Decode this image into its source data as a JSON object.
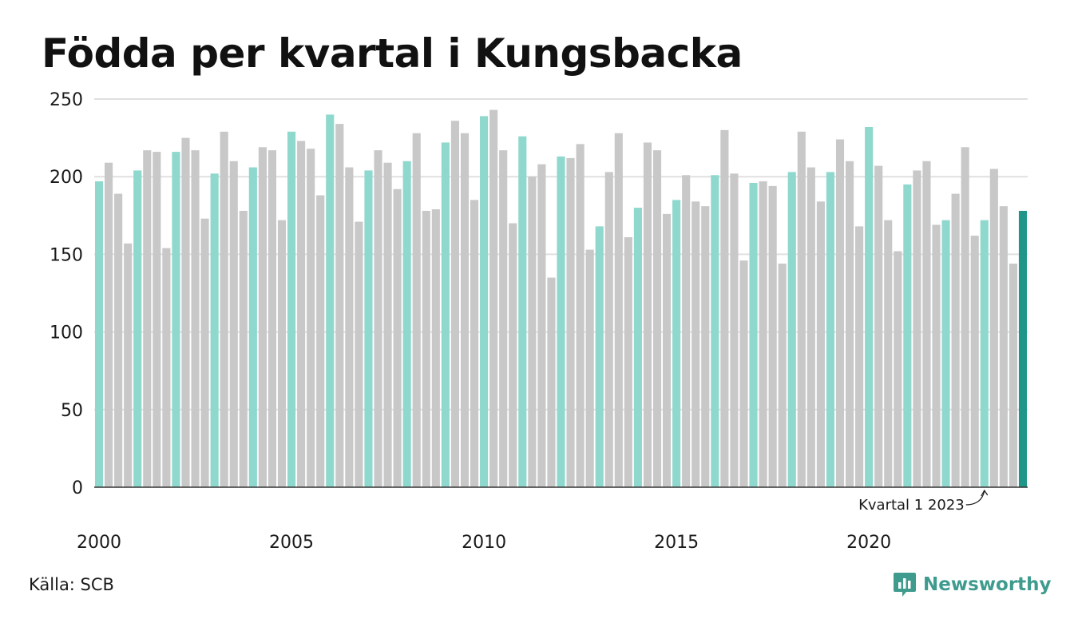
{
  "chart_data": {
    "type": "bar",
    "title": "Födda per kvartal i Kungsbacka",
    "xlabel": "",
    "ylabel": "",
    "ylim": [
      0,
      250
    ],
    "yticks": [
      "0",
      "50",
      "100",
      "150",
      "200",
      "250"
    ],
    "xticks": [
      {
        "label": "2000",
        "year": 2000
      },
      {
        "label": "2005",
        "year": 2005
      },
      {
        "label": "2010",
        "year": 2010
      },
      {
        "label": "2015",
        "year": 2015
      },
      {
        "label": "2020",
        "year": 2020
      }
    ],
    "grid": true,
    "legend": "none",
    "annotation": {
      "text": "Kvartal 1 2023",
      "year": 2023,
      "quarter": 1
    },
    "colors": {
      "q1": "#8fd8ce",
      "other": "#c8c8c8",
      "latest": "#1f9688",
      "grid": "#e0e0e0",
      "axis": "#333333"
    },
    "series": [
      {
        "year": 2000,
        "values": [
          197,
          209,
          189,
          157
        ]
      },
      {
        "year": 2001,
        "values": [
          204,
          217,
          216,
          154
        ]
      },
      {
        "year": 2002,
        "values": [
          216,
          225,
          217,
          173
        ]
      },
      {
        "year": 2003,
        "values": [
          202,
          229,
          210,
          178
        ]
      },
      {
        "year": 2004,
        "values": [
          206,
          219,
          217,
          172
        ]
      },
      {
        "year": 2005,
        "values": [
          229,
          223,
          218,
          188
        ]
      },
      {
        "year": 2006,
        "values": [
          240,
          234,
          206,
          171
        ]
      },
      {
        "year": 2007,
        "values": [
          204,
          217,
          209,
          192
        ]
      },
      {
        "year": 2008,
        "values": [
          210,
          228,
          178,
          179
        ]
      },
      {
        "year": 2009,
        "values": [
          222,
          236,
          228,
          185
        ]
      },
      {
        "year": 2010,
        "values": [
          239,
          243,
          217,
          170
        ]
      },
      {
        "year": 2011,
        "values": [
          226,
          200,
          208,
          135
        ]
      },
      {
        "year": 2012,
        "values": [
          213,
          212,
          221,
          153
        ]
      },
      {
        "year": 2013,
        "values": [
          168,
          203,
          228,
          161
        ]
      },
      {
        "year": 2014,
        "values": [
          180,
          222,
          217,
          176
        ]
      },
      {
        "year": 2015,
        "values": [
          185,
          201,
          184,
          181
        ]
      },
      {
        "year": 2016,
        "values": [
          201,
          230,
          202,
          146
        ]
      },
      {
        "year": 2017,
        "values": [
          196,
          197,
          194,
          144
        ]
      },
      {
        "year": 2018,
        "values": [
          203,
          229,
          206,
          184
        ]
      },
      {
        "year": 2019,
        "values": [
          203,
          224,
          210,
          168
        ]
      },
      {
        "year": 2020,
        "values": [
          232,
          207,
          172,
          152
        ]
      },
      {
        "year": 2021,
        "values": [
          195,
          204,
          210,
          169
        ]
      },
      {
        "year": 2022,
        "values": [
          172,
          189,
          219,
          162
        ]
      },
      {
        "year": 2023,
        "values": [
          172,
          205,
          181,
          144
        ]
      },
      {
        "year": 2024,
        "values": [
          178
        ]
      }
    ]
  },
  "footer": {
    "source": "Källa: SCB",
    "brand": "Newsworthy",
    "brand_color": "#3f9b8e"
  }
}
